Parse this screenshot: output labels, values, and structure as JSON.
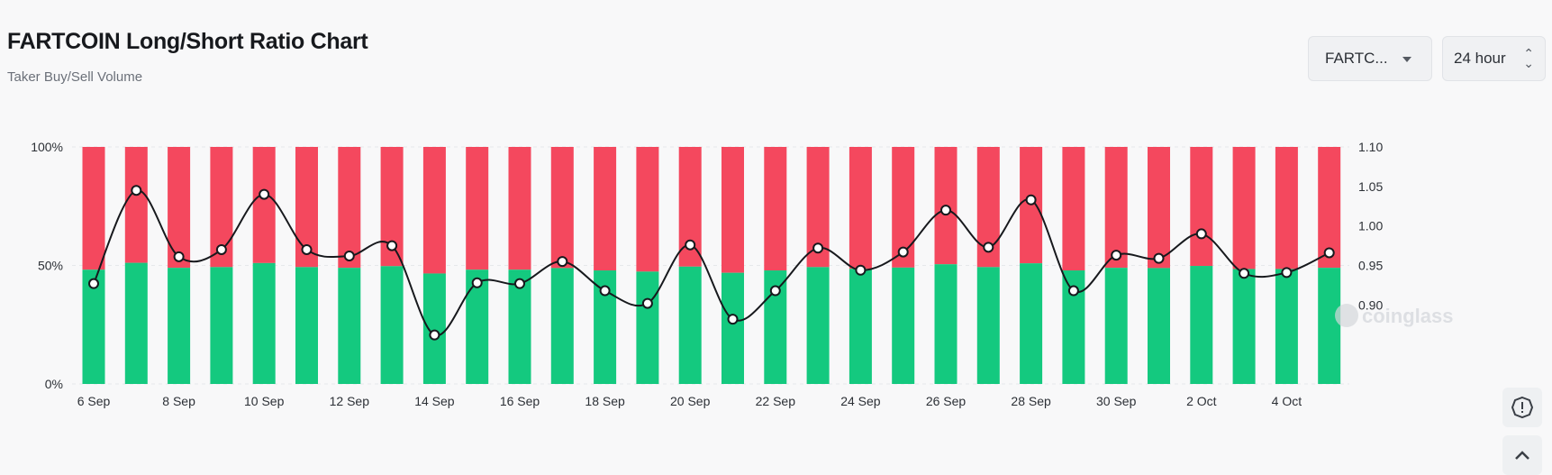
{
  "header": {
    "title": "FARTCOIN Long/Short Ratio Chart",
    "subtitle": "Taker Buy/Sell Volume"
  },
  "controls": {
    "symbol_select": "FARTC...",
    "interval_select": "24 hour"
  },
  "icons": {
    "symbol_caret": "chevron-down-icon",
    "interval_caret": "up-down-icon",
    "alert_button": "alert-icon",
    "scroll_top_button": "chevron-up-icon"
  },
  "watermark": "coinglass",
  "colors": {
    "long": "#14c97f",
    "short": "#f4485e",
    "ratio_line": "#17191d",
    "grid": "#e6e8eb",
    "axis_text": "#2c3036"
  },
  "chart_data": {
    "type": "bar",
    "stacked": true,
    "title": "FARTCOIN Long/Short Ratio Chart",
    "subtitle": "Taker Buy/Sell Volume",
    "x": [
      "6 Sep",
      "7 Sep",
      "8 Sep",
      "9 Sep",
      "10 Sep",
      "11 Sep",
      "12 Sep",
      "13 Sep",
      "14 Sep",
      "15 Sep",
      "16 Sep",
      "17 Sep",
      "18 Sep",
      "19 Sep",
      "20 Sep",
      "21 Sep",
      "22 Sep",
      "23 Sep",
      "24 Sep",
      "25 Sep",
      "26 Sep",
      "27 Sep",
      "28 Sep",
      "29 Sep",
      "30 Sep",
      "1 Oct",
      "2 Oct",
      "3 Oct",
      "4 Oct",
      "5 Oct"
    ],
    "x_tick_labels": [
      "6 Sep",
      "8 Sep",
      "10 Sep",
      "12 Sep",
      "14 Sep",
      "16 Sep",
      "18 Sep",
      "20 Sep",
      "22 Sep",
      "24 Sep",
      "26 Sep",
      "28 Sep",
      "30 Sep",
      "2 Oct",
      "4 Oct"
    ],
    "series": [
      {
        "axis": "left",
        "values": [
          48.2,
          51.1,
          49.0,
          49.3,
          51.0,
          49.3,
          49.0,
          49.7,
          46.6,
          48.2,
          48.2,
          48.9,
          47.9,
          47.4,
          49.5,
          46.9,
          47.9,
          49.3,
          48.6,
          49.1,
          50.5,
          49.3,
          50.9,
          47.9,
          49.0,
          48.9,
          49.8,
          48.5,
          48.5,
          49.0
        ]
      },
      {
        "axis": "left",
        "values": [
          51.8,
          48.9,
          51.0,
          50.7,
          49.0,
          50.7,
          51.0,
          50.3,
          53.4,
          51.8,
          51.8,
          51.1,
          52.1,
          52.6,
          50.5,
          53.1,
          52.1,
          50.7,
          51.4,
          50.9,
          49.5,
          50.7,
          49.1,
          52.1,
          51.0,
          51.1,
          50.2,
          51.5,
          51.5,
          51.0
        ]
      },
      {
        "type": "line",
        "axis": "right",
        "values": [
          0.927,
          1.045,
          0.961,
          0.97,
          1.04,
          0.97,
          0.962,
          0.975,
          0.862,
          0.928,
          0.927,
          0.955,
          0.918,
          0.902,
          0.976,
          0.882,
          0.918,
          0.972,
          0.944,
          0.967,
          1.02,
          0.973,
          1.033,
          0.918,
          0.963,
          0.959,
          0.99,
          0.94,
          0.941,
          0.966
        ]
      }
    ],
    "y_left": {
      "ticks": [
        "0%",
        "50%",
        "100%"
      ],
      "min": 0,
      "max": 100
    },
    "y_right": {
      "ticks": [
        "0.90",
        "0.95",
        "1.00",
        "1.05",
        "1.10"
      ],
      "min": 0.8,
      "max": 1.1
    },
    "grid": true,
    "legend": "none"
  }
}
